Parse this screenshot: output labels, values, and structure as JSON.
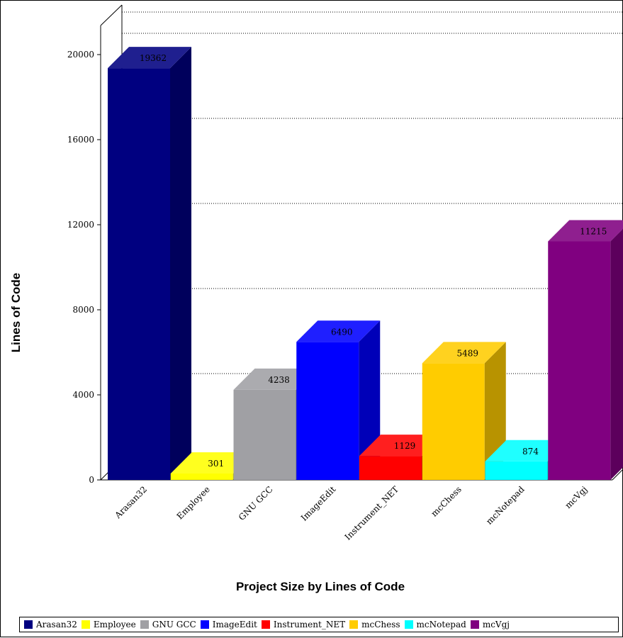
{
  "chart_data": {
    "type": "bar",
    "title": "Project Size by Lines of Code",
    "xlabel": "",
    "ylabel": "Lines of Code",
    "ylim": [
      0,
      20000
    ],
    "yticks": [
      "0",
      "4000",
      "8000",
      "12000",
      "16000",
      "20000"
    ],
    "categories": [
      "Arasan32",
      "Employee",
      "GNU GCC",
      "ImageEdit",
      "Instrument_NET",
      "mcChess",
      "mcNotepad",
      "mcVgj"
    ],
    "values": [
      19362,
      301,
      4238,
      6490,
      1129,
      5489,
      874,
      11215
    ],
    "value_labels": [
      "19362",
      "301",
      "4238",
      "6490",
      "1129",
      "5489",
      "874",
      "11215"
    ],
    "colors": [
      "#000080",
      "#ffff00",
      "#a0a0a4",
      "#0000ff",
      "#ff0000",
      "#ffcc00",
      "#00ffff",
      "#800080"
    ],
    "grid": true,
    "legend_position": "bottom",
    "three_d": true
  }
}
